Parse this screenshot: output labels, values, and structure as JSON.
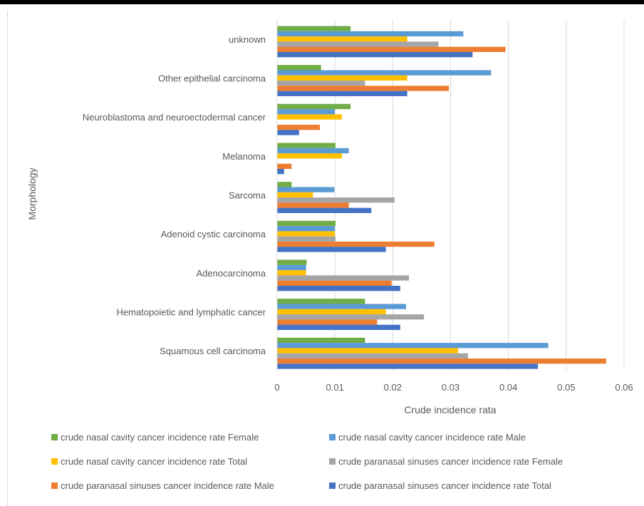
{
  "chart_data": {
    "type": "bar",
    "orientation": "horizontal",
    "title": "",
    "xlabel": "Crude incidence rata",
    "ylabel": "Morphology",
    "xlim": [
      0,
      0.06
    ],
    "x_ticks": [
      "0",
      "0.01",
      "0.02",
      "0.03",
      "0.04",
      "0.05",
      "0.06"
    ],
    "grid": "vertical",
    "legend_position": "bottom",
    "categories": [
      "unknown",
      "Other epithelial  carcinoma",
      "Neuroblastoma and neuroectodermal cancer",
      "Melanoma",
      "Sarcoma",
      "Adenoid cystic carcinoma",
      "Adenocarcinoma",
      "Hematopoietic and lymphatic  cancer",
      "Squamous cell carcinoma"
    ],
    "series": [
      {
        "name": "crude nasal cavity cancer incidence rate Female",
        "color": "#70ad47",
        "values": [
          0.0127,
          0.0076,
          0.0127,
          0.0101,
          0.0025,
          0.0101,
          0.0051,
          0.0152,
          0.0152
        ]
      },
      {
        "name": "crude nasal cavity cancer incidence rate Male",
        "color": "#5b9bd5",
        "values": [
          0.0322,
          0.037,
          0.01,
          0.0124,
          0.0099,
          0.01,
          0.005,
          0.0223,
          0.0469
        ]
      },
      {
        "name": "crude nasal cavity cancer incidence rate Total",
        "color": "#ffc000",
        "values": [
          0.0225,
          0.0225,
          0.0112,
          0.0112,
          0.0062,
          0.01,
          0.005,
          0.0188,
          0.0313
        ]
      },
      {
        "name": "crude paranasal sinuses cancer incidence rate Female",
        "color": "#a5a5a5",
        "values": [
          0.0279,
          0.0152,
          0,
          0,
          0.0203,
          0.0101,
          0.0228,
          0.0254,
          0.033
        ]
      },
      {
        "name": "crude paranasal sinuses cancer incidence rate Male",
        "color": "#ed7d31",
        "values": [
          0.0395,
          0.0297,
          0.0074,
          0.0025,
          0.0124,
          0.0272,
          0.0198,
          0.0173,
          0.0569
        ]
      },
      {
        "name": "crude paranasal sinuses cancer incidence rate Total",
        "color": "#4472c4",
        "values": [
          0.0338,
          0.0225,
          0.0038,
          0.0012,
          0.0163,
          0.0188,
          0.0213,
          0.0213,
          0.0451
        ]
      }
    ]
  }
}
